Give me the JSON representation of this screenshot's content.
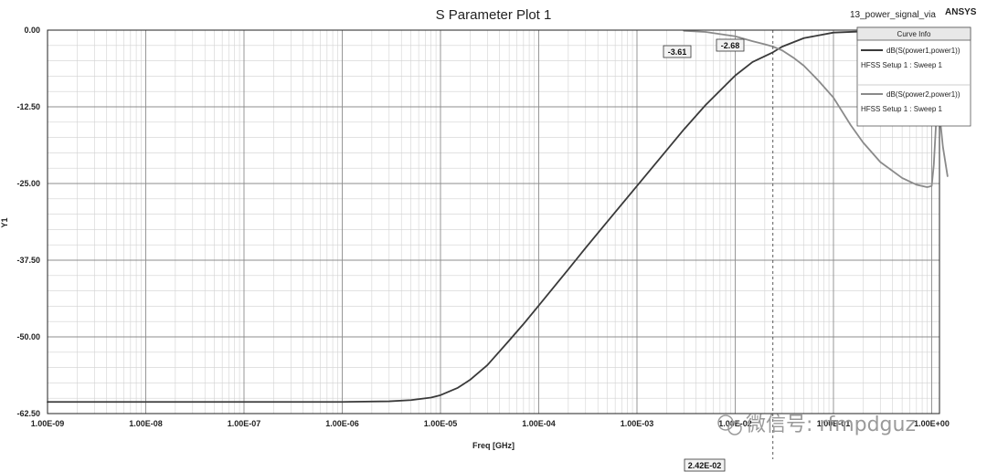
{
  "chart_data": {
    "type": "line",
    "title": "S Parameter Plot 1",
    "project": "13_power_signal_via",
    "brand": "ANSYS",
    "xlabel": "Freq [GHz]",
    "ylabel": "Y1",
    "x_scale": "log",
    "xlim": [
      1e-09,
      1.2
    ],
    "ylim": [
      -62.5,
      0
    ],
    "grid": true,
    "x_tick_labels": [
      "1.00E-09",
      "1.00E-08",
      "1.00E-07",
      "1.00E-06",
      "1.00E-05",
      "1.00E-04",
      "1.00E-03",
      "1.00E-02",
      "1.00E-01",
      "1.00E+00"
    ],
    "y_tick_labels": [
      "0.00",
      "-12.50",
      "-25.00",
      "-37.50",
      "-50.00",
      "-62.50"
    ],
    "legend": {
      "title": "Curve Info",
      "placement": "top-right",
      "entries": [
        {
          "name": "dB(S(power1,power1))",
          "setup": "HFSS Setup 1 : Sweep 1",
          "color": "#3a3a3a"
        },
        {
          "name": "dB(S(power2,power1))",
          "setup": "HFSS Setup 1 : Sweep 1",
          "color": "#8a8a8a"
        }
      ]
    },
    "series": [
      {
        "name": "dB(S(power1,power1))",
        "color": "#3a3a3a",
        "x": [
          1e-09,
          1e-08,
          1e-07,
          1e-06,
          3e-06,
          5e-06,
          8e-06,
          1e-05,
          1.5e-05,
          2e-05,
          3e-05,
          5e-05,
          7e-05,
          0.0001,
          0.0002,
          0.0003,
          0.0005,
          0.001,
          0.002,
          0.003,
          0.005,
          0.01,
          0.015,
          0.0242,
          0.03,
          0.05,
          0.1,
          0.3,
          1
        ],
        "y": [
          -60.6,
          -60.6,
          -60.6,
          -60.6,
          -60.5,
          -60.3,
          -59.9,
          -59.5,
          -58.3,
          -57.0,
          -54.6,
          -50.6,
          -47.9,
          -44.9,
          -39.0,
          -35.5,
          -31.2,
          -25.4,
          -19.6,
          -16.2,
          -12.2,
          -7.4,
          -5.2,
          -3.61,
          -2.7,
          -1.3,
          -0.4,
          -0.1,
          0.0
        ]
      },
      {
        "name": "dB(S(power2,power1))",
        "color": "#8a8a8a",
        "x": [
          0.003,
          0.005,
          0.01,
          0.015,
          0.02,
          0.0242,
          0.03,
          0.04,
          0.05,
          0.07,
          0.1,
          0.15,
          0.2,
          0.3,
          0.5,
          0.7,
          0.9,
          1.0,
          1.05,
          1.1,
          1.15,
          1.2,
          1.3,
          1.45
        ],
        "y": [
          -0.1,
          -0.3,
          -1.0,
          -1.8,
          -2.3,
          -2.68,
          -3.3,
          -4.6,
          -5.8,
          -8.2,
          -11.0,
          -15.5,
          -18.3,
          -21.5,
          -24.1,
          -25.2,
          -25.6,
          -25.4,
          -22.0,
          -16.0,
          -10.0,
          -13.5,
          -19.0,
          -23.8
        ]
      }
    ],
    "markers": {
      "x_value": 0.0242,
      "x_label": "2.42E-02",
      "labels": [
        "-3.61",
        "-2.68"
      ]
    }
  },
  "watermark": "微信号: rfmpdguz"
}
